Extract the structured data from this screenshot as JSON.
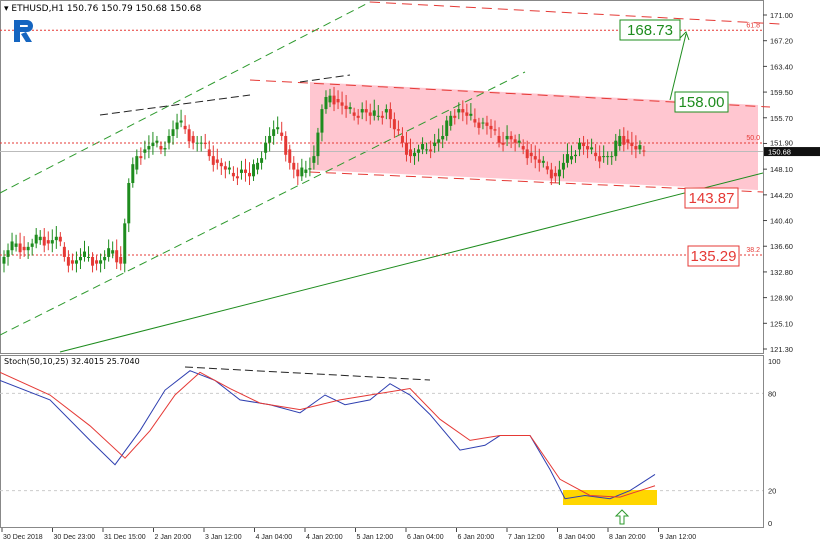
{
  "header": {
    "symbol": "ETHUSD,H1",
    "ohlc": "150.76 150.79 150.68 150.68"
  },
  "logo": {
    "text": "R",
    "color": "#1565c0"
  },
  "price_axis": {
    "ticks": [
      "171.00",
      "167.20",
      "163.40",
      "159.50",
      "155.70",
      "151.90",
      "148.10",
      "144.20",
      "140.40",
      "136.60",
      "132.80",
      "128.90",
      "125.10",
      "121.30"
    ],
    "current": "150.68",
    "range": [
      121.3,
      171.0
    ]
  },
  "fib_levels": [
    {
      "label": "61.8",
      "price": 168.73
    },
    {
      "label": "50.0",
      "price": 151.95
    },
    {
      "label": "38.2",
      "price": 135.29
    }
  ],
  "price_labels": [
    {
      "text": "168.73",
      "color": "#1e8c1e"
    },
    {
      "text": "158.00",
      "color": "#1e8c1e"
    },
    {
      "text": "143.87",
      "color": "#e53935"
    },
    {
      "text": "135.29",
      "color": "#e53935"
    }
  ],
  "candles_closes": [
    134,
    136,
    137,
    136,
    137,
    138,
    137,
    138,
    135,
    134,
    135,
    135,
    134,
    135,
    136,
    134,
    146,
    150,
    151,
    152,
    151,
    153,
    155,
    154,
    152,
    152,
    150,
    149,
    148,
    147,
    148,
    147,
    149,
    152,
    154,
    153,
    149,
    147,
    148,
    150,
    157,
    159,
    158,
    157,
    156,
    157,
    156,
    156,
    157,
    154,
    152,
    150,
    151,
    151,
    152,
    153,
    156,
    157,
    156,
    155,
    155,
    154,
    152,
    153,
    152,
    151,
    150,
    149,
    148,
    147,
    149,
    150,
    152,
    151,
    150,
    150,
    150,
    153,
    152,
    151,
    150.68
  ],
  "gap_after_index": 15,
  "stoch": {
    "label": "Stoch(50,10,25) 32.4015 25.7040",
    "levels": [
      "100",
      "80",
      "20",
      "0"
    ],
    "k": [
      [
        0,
        88
      ],
      [
        50,
        76
      ],
      [
        90,
        51
      ],
      [
        115,
        36
      ],
      [
        140,
        57
      ],
      [
        165,
        82
      ],
      [
        190,
        94
      ],
      [
        215,
        88
      ],
      [
        240,
        76
      ],
      [
        270,
        73
      ],
      [
        300,
        68
      ],
      [
        325,
        79
      ],
      [
        345,
        73
      ],
      [
        370,
        76
      ],
      [
        390,
        86
      ],
      [
        410,
        79
      ],
      [
        430,
        67
      ],
      [
        460,
        45
      ],
      [
        485,
        48
      ],
      [
        500,
        54
      ],
      [
        530,
        54
      ],
      [
        550,
        33
      ],
      [
        565,
        15
      ],
      [
        585,
        17
      ],
      [
        610,
        15
      ],
      [
        630,
        20
      ],
      [
        655,
        30
      ]
    ],
    "d": [
      [
        0,
        93
      ],
      [
        50,
        79
      ],
      [
        90,
        60
      ],
      [
        125,
        40
      ],
      [
        150,
        57
      ],
      [
        175,
        79
      ],
      [
        200,
        93
      ],
      [
        230,
        83
      ],
      [
        260,
        74
      ],
      [
        300,
        70
      ],
      [
        340,
        76
      ],
      [
        380,
        80
      ],
      [
        410,
        83
      ],
      [
        440,
        64
      ],
      [
        470,
        51
      ],
      [
        500,
        54
      ],
      [
        530,
        54
      ],
      [
        560,
        27
      ],
      [
        590,
        17
      ],
      [
        620,
        16
      ],
      [
        655,
        23
      ]
    ],
    "k_color": "#2e3fb0",
    "d_color": "#e53935"
  },
  "time_axis": [
    "30 Dec 2018",
    "30 Dec 23:00",
    "31 Dec 15:00",
    "2 Jan 20:00",
    "3 Jan 12:00",
    "4 Jan 04:00",
    "4 Jan 20:00",
    "5 Jan 12:00",
    "6 Jan 04:00",
    "6 Jan 20:00",
    "7 Jan 12:00",
    "8 Jan 04:00",
    "8 Jan 20:00",
    "9 Jan 12:00"
  ],
  "colors": {
    "bull": "#1e8c1e",
    "bear": "#e53935",
    "channel_fill": "#ffc0cb",
    "highlight": "#ffd600"
  }
}
